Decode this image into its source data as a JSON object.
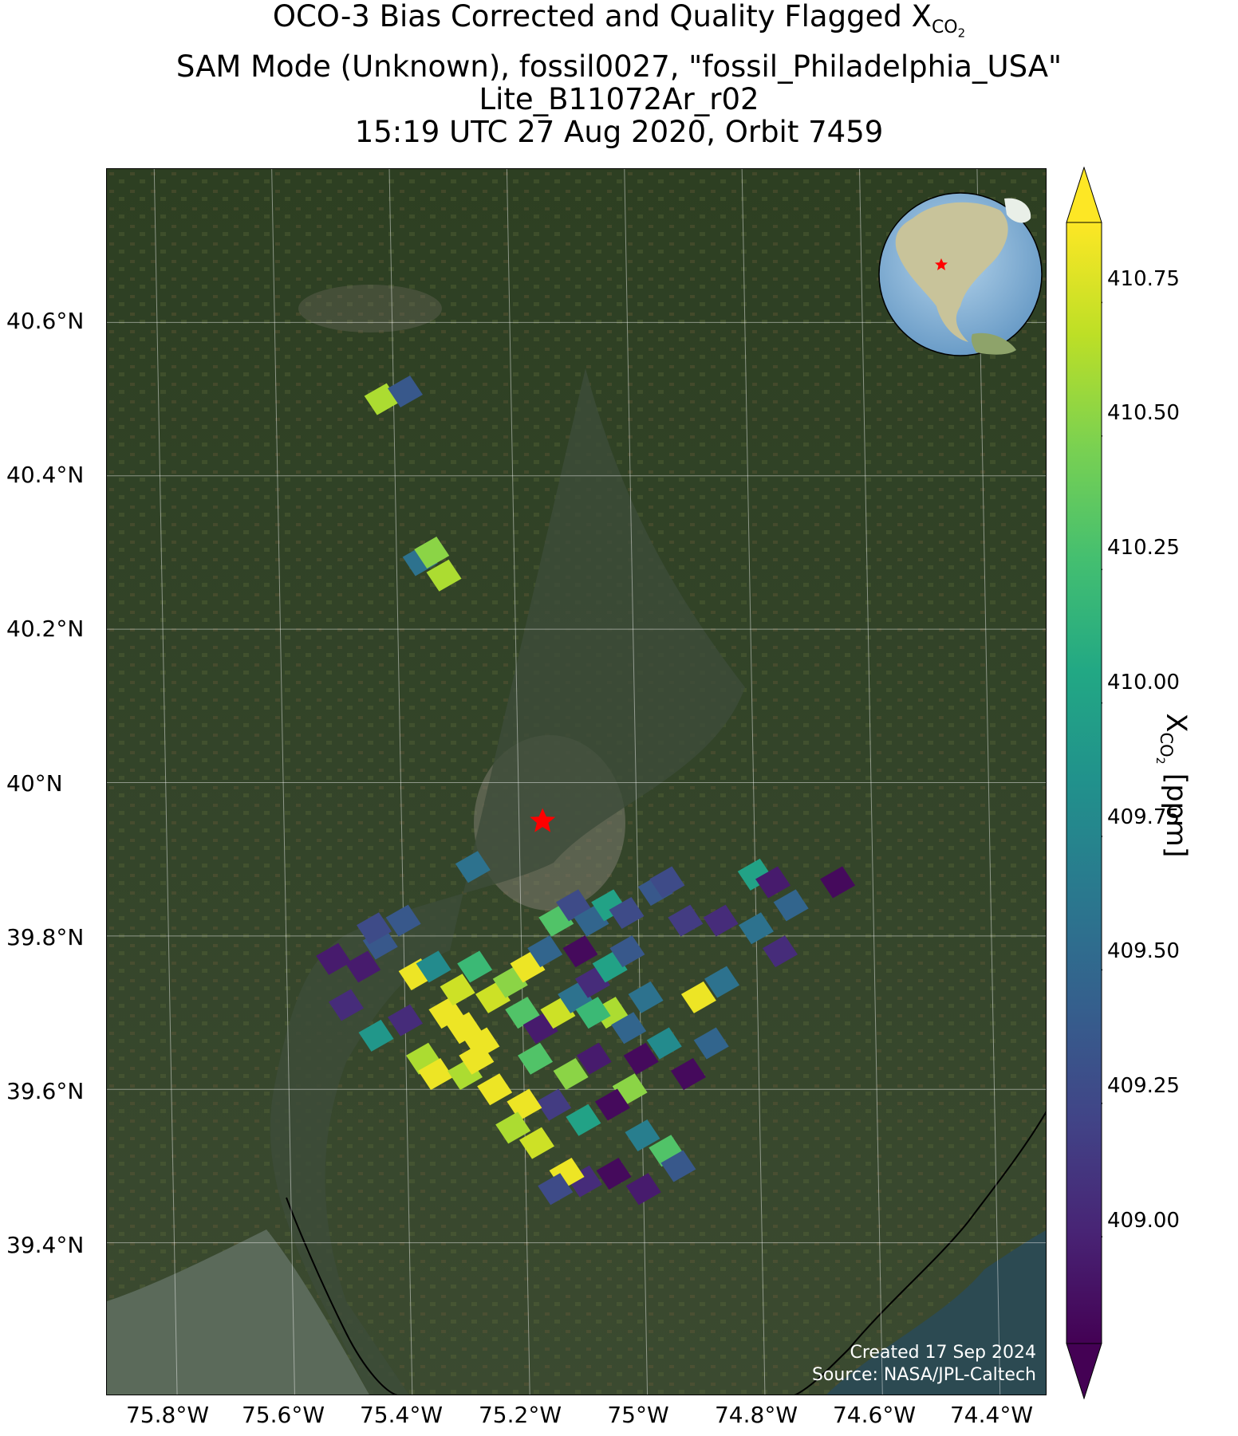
{
  "title": {
    "line1_prefix": "OCO-3 Bias Corrected and Quality Flagged X",
    "line1_sub": "CO2",
    "line2": "SAM Mode (Unknown), fossil0027, \"fossil_Philadelphia_USA\"",
    "line3": "Lite_B11072Ar_r02",
    "line4": "15:19 UTC 27 Aug 2020, Orbit 7459"
  },
  "map": {
    "lat_ticks": [
      "40.6°N",
      "40.4°N",
      "40.2°N",
      "40°N",
      "39.8°N",
      "39.6°N",
      "39.4°N"
    ],
    "lon_ticks": [
      "75.8°W",
      "75.6°W",
      "75.4°W",
      "75.2°W",
      "75°W",
      "74.8°W",
      "74.4°W",
      "74.6°W"
    ],
    "lon_ticks_ordered": [
      "75.8°W",
      "75.6°W",
      "75.4°W",
      "75.2°W",
      "75°W",
      "74.8°W",
      "74.6°W",
      "74.4°W"
    ],
    "grid": "on",
    "basemap": "satellite imagery",
    "target_marker": "red star",
    "inset": "globe (North America) with red star",
    "credit_line1": "Created 17 Sep 2024",
    "credit_line2": "Source: NASA/JPL-Caltech"
  },
  "colorbar": {
    "label_prefix": "X",
    "label_sub": "CO2",
    "label_suffix": " [ppm]",
    "ticks": [
      "410.75",
      "410.50",
      "410.25",
      "410.00",
      "409.75",
      "409.50",
      "409.25",
      "409.00"
    ],
    "range": [
      408.8,
      410.9
    ],
    "colormap": "viridis",
    "extend": "both"
  },
  "chart_data": {
    "type": "heatmap",
    "title": "OCO-3 Bias Corrected and Quality Flagged XCO2",
    "xlabel": "",
    "ylabel": "",
    "xlim": [
      -75.9,
      -74.3
    ],
    "ylim": [
      39.2,
      40.8
    ],
    "target": {
      "lon": -75.16,
      "lat": 39.95
    },
    "soundings": [
      {
        "lon": -75.42,
        "lat": 40.5,
        "xco2": 410.6
      },
      {
        "lon": -75.38,
        "lat": 40.51,
        "xco2": 409.4
      },
      {
        "lon": -75.36,
        "lat": 40.29,
        "xco2": 409.6
      },
      {
        "lon": -75.34,
        "lat": 40.3,
        "xco2": 410.5
      },
      {
        "lon": -75.32,
        "lat": 40.27,
        "xco2": 410.6
      },
      {
        "lon": -75.28,
        "lat": 39.89,
        "xco2": 409.6
      },
      {
        "lon": -75.52,
        "lat": 39.77,
        "xco2": 409.0
      },
      {
        "lon": -75.47,
        "lat": 39.76,
        "xco2": 409.0
      },
      {
        "lon": -75.44,
        "lat": 39.79,
        "xco2": 409.4
      },
      {
        "lon": -75.45,
        "lat": 39.81,
        "xco2": 409.3
      },
      {
        "lon": -75.4,
        "lat": 39.82,
        "xco2": 409.4
      },
      {
        "lon": -75.5,
        "lat": 39.71,
        "xco2": 409.1
      },
      {
        "lon": -75.38,
        "lat": 39.75,
        "xco2": 410.8
      },
      {
        "lon": -75.35,
        "lat": 39.76,
        "xco2": 409.8
      },
      {
        "lon": -75.45,
        "lat": 39.67,
        "xco2": 409.9
      },
      {
        "lon": -75.4,
        "lat": 39.69,
        "xco2": 409.1
      },
      {
        "lon": -75.37,
        "lat": 39.64,
        "xco2": 410.6
      },
      {
        "lon": -75.35,
        "lat": 39.62,
        "xco2": 410.8
      },
      {
        "lon": -75.33,
        "lat": 39.7,
        "xco2": 410.8
      },
      {
        "lon": -75.3,
        "lat": 39.68,
        "xco2": 410.8
      },
      {
        "lon": -75.27,
        "lat": 39.66,
        "xco2": 410.8
      },
      {
        "lon": -75.31,
        "lat": 39.73,
        "xco2": 410.7
      },
      {
        "lon": -75.28,
        "lat": 39.76,
        "xco2": 410.2
      },
      {
        "lon": -75.25,
        "lat": 39.72,
        "xco2": 410.7
      },
      {
        "lon": -75.22,
        "lat": 39.74,
        "xco2": 410.5
      },
      {
        "lon": -75.19,
        "lat": 39.76,
        "xco2": 410.8
      },
      {
        "lon": -75.16,
        "lat": 39.78,
        "xco2": 409.5
      },
      {
        "lon": -75.2,
        "lat": 39.7,
        "xco2": 410.3
      },
      {
        "lon": -75.17,
        "lat": 39.68,
        "xco2": 409.0
      },
      {
        "lon": -75.14,
        "lat": 39.7,
        "xco2": 410.7
      },
      {
        "lon": -75.11,
        "lat": 39.72,
        "xco2": 409.6
      },
      {
        "lon": -75.08,
        "lat": 39.74,
        "xco2": 409.1
      },
      {
        "lon": -75.05,
        "lat": 39.76,
        "xco2": 410.0
      },
      {
        "lon": -75.02,
        "lat": 39.78,
        "xco2": 409.4
      },
      {
        "lon": -75.14,
        "lat": 39.82,
        "xco2": 410.3
      },
      {
        "lon": -75.11,
        "lat": 39.84,
        "xco2": 409.3
      },
      {
        "lon": -75.08,
        "lat": 39.82,
        "xco2": 409.5
      },
      {
        "lon": -75.05,
        "lat": 39.84,
        "xco2": 410.0
      },
      {
        "lon": -75.02,
        "lat": 39.83,
        "xco2": 409.3
      },
      {
        "lon": -74.97,
        "lat": 39.86,
        "xco2": 409.4
      },
      {
        "lon": -74.95,
        "lat": 39.87,
        "xco2": 409.3
      },
      {
        "lon": -74.92,
        "lat": 39.82,
        "xco2": 409.2
      },
      {
        "lon": -74.86,
        "lat": 39.82,
        "xco2": 409.1
      },
      {
        "lon": -74.8,
        "lat": 39.88,
        "xco2": 410.0
      },
      {
        "lon": -74.77,
        "lat": 39.87,
        "xco2": 409.0
      },
      {
        "lon": -74.8,
        "lat": 39.81,
        "xco2": 409.6
      },
      {
        "lon": -74.74,
        "lat": 39.84,
        "xco2": 409.5
      },
      {
        "lon": -74.76,
        "lat": 39.78,
        "xco2": 409.1
      },
      {
        "lon": -74.66,
        "lat": 39.87,
        "xco2": 408.9
      },
      {
        "lon": -75.05,
        "lat": 39.7,
        "xco2": 410.6
      },
      {
        "lon": -75.02,
        "lat": 39.68,
        "xco2": 409.5
      },
      {
        "lon": -74.99,
        "lat": 39.72,
        "xco2": 409.6
      },
      {
        "lon": -74.96,
        "lat": 39.66,
        "xco2": 409.8
      },
      {
        "lon": -74.9,
        "lat": 39.72,
        "xco2": 410.8
      },
      {
        "lon": -74.86,
        "lat": 39.74,
        "xco2": 409.6
      },
      {
        "lon": -74.88,
        "lat": 39.66,
        "xco2": 409.5
      },
      {
        "lon": -74.92,
        "lat": 39.62,
        "xco2": 408.9
      },
      {
        "lon": -75.02,
        "lat": 39.6,
        "xco2": 410.5
      },
      {
        "lon": -75.05,
        "lat": 39.58,
        "xco2": 408.9
      },
      {
        "lon": -75.1,
        "lat": 39.56,
        "xco2": 410.0
      },
      {
        "lon": -75.15,
        "lat": 39.58,
        "xco2": 409.2
      },
      {
        "lon": -75.2,
        "lat": 39.58,
        "xco2": 410.8
      },
      {
        "lon": -75.25,
        "lat": 39.6,
        "xco2": 410.8
      },
      {
        "lon": -75.22,
        "lat": 39.55,
        "xco2": 410.6
      },
      {
        "lon": -75.18,
        "lat": 39.53,
        "xco2": 410.7
      },
      {
        "lon": -75.3,
        "lat": 39.62,
        "xco2": 410.6
      },
      {
        "lon": -75.12,
        "lat": 39.62,
        "xco2": 410.5
      },
      {
        "lon": -75.08,
        "lat": 39.64,
        "xco2": 409.0
      },
      {
        "lon": -75.0,
        "lat": 39.54,
        "xco2": 409.7
      },
      {
        "lon": -74.96,
        "lat": 39.52,
        "xco2": 410.3
      },
      {
        "lon": -74.94,
        "lat": 39.5,
        "xco2": 409.4
      },
      {
        "lon": -75.05,
        "lat": 39.49,
        "xco2": 408.9
      },
      {
        "lon": -75.1,
        "lat": 39.48,
        "xco2": 409.1
      },
      {
        "lon": -75.13,
        "lat": 39.49,
        "xco2": 410.8
      },
      {
        "lon": -75.15,
        "lat": 39.47,
        "xco2": 409.3
      },
      {
        "lon": -75.0,
        "lat": 39.47,
        "xco2": 409.0
      },
      {
        "lon": -75.08,
        "lat": 39.7,
        "xco2": 410.2
      },
      {
        "lon": -75.18,
        "lat": 39.64,
        "xco2": 410.3
      },
      {
        "lon": -75.28,
        "lat": 39.64,
        "xco2": 410.8
      },
      {
        "lon": -75.1,
        "lat": 39.78,
        "xco2": 408.9
      },
      {
        "lon": -75.0,
        "lat": 39.64,
        "xco2": 408.9
      }
    ]
  }
}
